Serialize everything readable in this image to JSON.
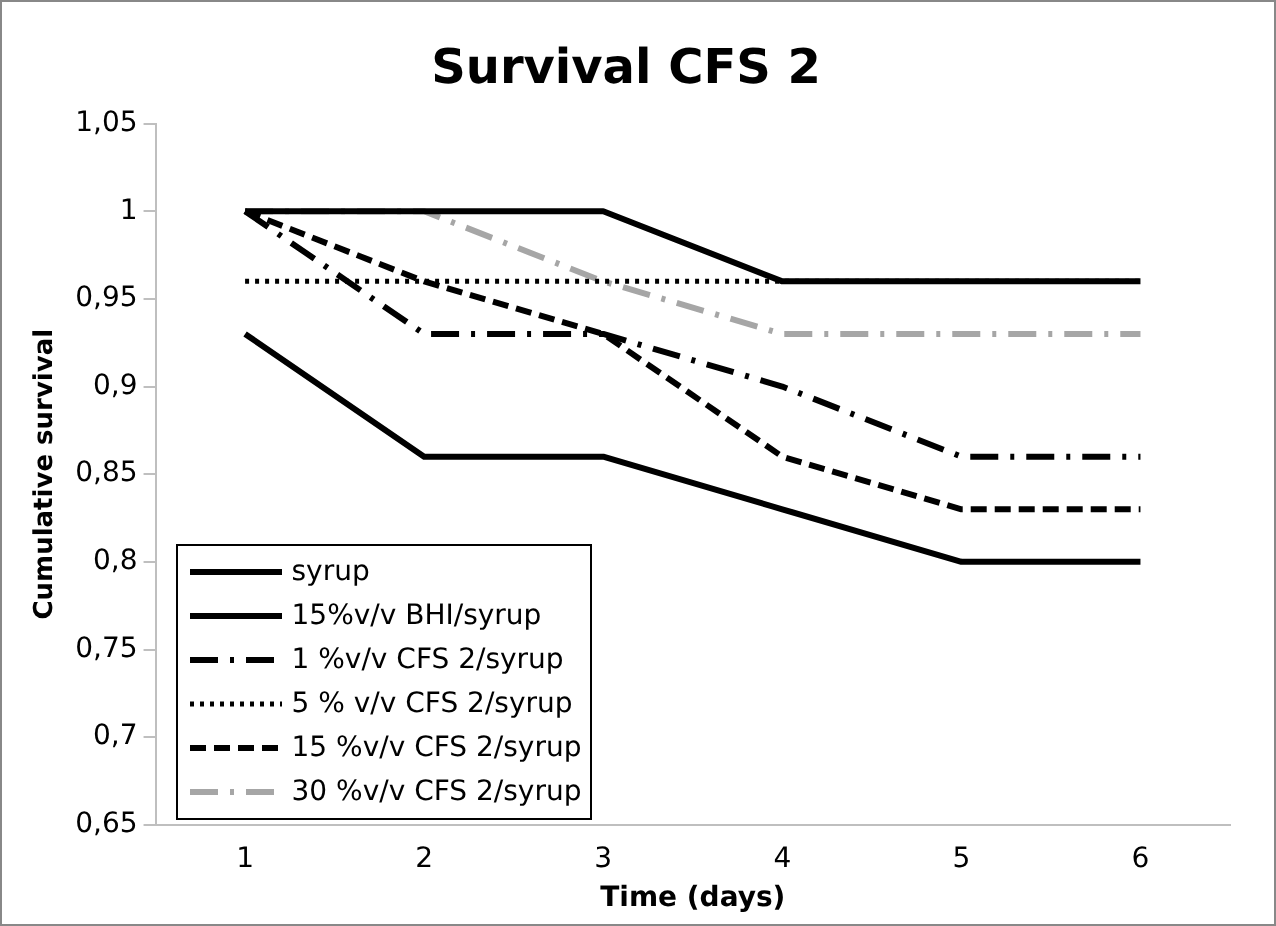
{
  "chart_data": {
    "type": "line",
    "title": "Survival CFS 2",
    "xlabel": "Time (days)",
    "ylabel": "Cumulative survival",
    "categories": [
      "1",
      "2",
      "3",
      "4",
      "5",
      "6"
    ],
    "series": [
      {
        "name": "syrup",
        "color": "#000000",
        "line_style": "solid",
        "values": [
          0.93,
          0.86,
          0.86,
          0.83,
          0.8,
          0.8
        ]
      },
      {
        "name": "15%v/v BHI/syrup",
        "color": "#000000",
        "line_style": "solid",
        "values": [
          1,
          1,
          1,
          0.96,
          0.96,
          0.96
        ]
      },
      {
        "name": "1 %v/v CFS 2/syrup",
        "color": "#000000",
        "line_style": "dashdot",
        "values": [
          1,
          0.93,
          0.93,
          0.9,
          0.86,
          0.86
        ]
      },
      {
        "name": "5 % v/v CFS 2/syrup",
        "color": "#000000",
        "line_style": "dotted",
        "values": [
          0.96,
          0.96,
          0.96,
          0.96,
          0.96,
          0.96
        ]
      },
      {
        "name": "15 %v/v CFS 2/syrup",
        "color": "#000000",
        "line_style": "dashed",
        "values": [
          1,
          0.96,
          0.93,
          0.86,
          0.83,
          0.83
        ]
      },
      {
        "name": "30 %v/v CFS 2/syrup",
        "color": "#a6a6a6",
        "line_style": "dashdot",
        "values": [
          1,
          1,
          0.96,
          0.93,
          0.93,
          0.93
        ]
      }
    ],
    "ylim": [
      0.65,
      1.05
    ],
    "yticks": [
      {
        "value": 0.65,
        "label": "0,65"
      },
      {
        "value": 0.7,
        "label": "0,7"
      },
      {
        "value": 0.75,
        "label": "0,75"
      },
      {
        "value": 0.8,
        "label": "0,8"
      },
      {
        "value": 0.85,
        "label": "0,85"
      },
      {
        "value": 0.9,
        "label": "0,9"
      },
      {
        "value": 0.95,
        "label": "0,95"
      },
      {
        "value": 1,
        "label": "1"
      },
      {
        "value": 1.05,
        "label": "1,05"
      }
    ],
    "grid": false,
    "legend": "bottom left",
    "marker": "none"
  }
}
